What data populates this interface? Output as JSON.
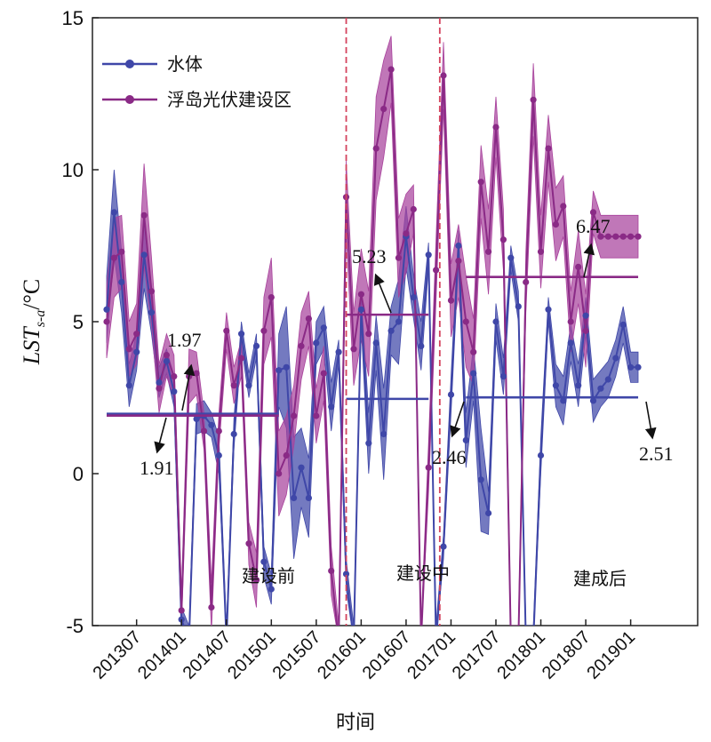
{
  "chart_data": {
    "type": "line",
    "title": "",
    "xlabel": "时间",
    "ylabel_main": "LST",
    "ylabel_sub": "s-a",
    "ylabel_unit": "/°C",
    "ylim": [
      -5,
      15
    ],
    "yticks": [
      "-5",
      "0",
      "5",
      "10",
      "15"
    ],
    "x_range": [
      0,
      78
    ],
    "xticks": [
      {
        "label": "201307",
        "x": 4
      },
      {
        "label": "201401",
        "x": 10
      },
      {
        "label": "201407",
        "x": 16
      },
      {
        "label": "201501",
        "x": 22
      },
      {
        "label": "201507",
        "x": 28
      },
      {
        "label": "201601",
        "x": 34
      },
      {
        "label": "201607",
        "x": 40
      },
      {
        "label": "201701",
        "x": 46
      },
      {
        "label": "201707",
        "x": 52
      },
      {
        "label": "201801",
        "x": 58
      },
      {
        "label": "201807",
        "x": 64
      },
      {
        "label": "201901",
        "x": 70
      }
    ],
    "legend_position": "top-left",
    "series": [
      {
        "name": "水体",
        "color": "#3f47a8",
        "band_color": "#3f47a8",
        "x": [
          0,
          1,
          2,
          3,
          4,
          5,
          6,
          7,
          8,
          9,
          10,
          11,
          12,
          13,
          14,
          15,
          16,
          17,
          18,
          19,
          20,
          21,
          22,
          23,
          24,
          25,
          26,
          27,
          28,
          29,
          30,
          31,
          32,
          33,
          34,
          35,
          36,
          37,
          38,
          39,
          40,
          41,
          42,
          43,
          44,
          45,
          46,
          47,
          48,
          49,
          50,
          51,
          52,
          53,
          54,
          55,
          56,
          57,
          58,
          59,
          60,
          61,
          62,
          63,
          64,
          65,
          66,
          67,
          68,
          69,
          70,
          71
        ],
        "values": [
          5.4,
          8.6,
          6.3,
          2.9,
          4.0,
          7.2,
          5.3,
          3.0,
          3.7,
          2.7,
          -4.8,
          -5.5,
          1.8,
          1.9,
          1.6,
          0.6,
          -5.5,
          1.3,
          4.6,
          2.9,
          4.2,
          -2.9,
          -3.8,
          3.4,
          3.5,
          -0.8,
          0.2,
          -0.8,
          4.3,
          4.8,
          2.2,
          4.0,
          -3.3,
          -5.5,
          5.4,
          1.0,
          4.3,
          1.3,
          4.7,
          5.0,
          7.8,
          5.8,
          4.2,
          7.2,
          -5.5,
          -2.4,
          2.6,
          7.5,
          1.1,
          3.3,
          -0.2,
          -1.3,
          5.0,
          3.2,
          7.1,
          5.5,
          -5.5,
          -5.5,
          0.6,
          5.4,
          2.9,
          2.4,
          4.3,
          2.9,
          5.2,
          2.4,
          2.8,
          3.1,
          3.8,
          4.9,
          3.5,
          3.5
        ],
        "upper": [
          6.5,
          10.0,
          7.3,
          3.6,
          4.6,
          8.3,
          6.0,
          3.5,
          4.1,
          3.2,
          -4.4,
          -5.0,
          2.3,
          2.4,
          2.0,
          1.2,
          -5.0,
          1.8,
          5.0,
          3.3,
          4.6,
          -2.4,
          -3.3,
          4.6,
          5.5,
          1.2,
          1.5,
          0.5,
          5.0,
          5.5,
          3.0,
          4.4,
          -2.8,
          -5.0,
          5.9,
          2.0,
          5.2,
          2.8,
          5.5,
          6.4,
          8.8,
          6.5,
          5.0,
          7.6,
          -5.0,
          -2.0,
          3.2,
          8.0,
          2.0,
          4.2,
          1.5,
          -0.6,
          5.6,
          3.8,
          7.5,
          6.0,
          -5.0,
          -5.0,
          1.2,
          5.8,
          3.6,
          3.2,
          4.9,
          3.6,
          5.8,
          3.1,
          3.4,
          3.7,
          4.4,
          5.5,
          4.0,
          4.0
        ],
        "lower": [
          4.3,
          7.2,
          5.3,
          2.2,
          3.4,
          6.1,
          4.6,
          2.5,
          3.3,
          2.2,
          -5.5,
          -5.5,
          1.3,
          1.4,
          1.2,
          0.0,
          -5.5,
          0.8,
          4.2,
          2.5,
          3.8,
          -3.4,
          -4.3,
          2.2,
          1.5,
          -2.8,
          -1.1,
          -2.1,
          3.6,
          4.1,
          1.4,
          3.6,
          -3.8,
          -5.5,
          4.9,
          0.0,
          3.4,
          -0.2,
          3.9,
          3.6,
          6.8,
          5.1,
          3.4,
          6.8,
          -5.5,
          -2.8,
          2.0,
          7.0,
          0.2,
          2.4,
          -1.9,
          -2.0,
          4.4,
          2.6,
          6.7,
          5.0,
          -5.5,
          -5.5,
          0.0,
          5.0,
          2.2,
          1.6,
          3.7,
          2.2,
          4.6,
          1.7,
          2.2,
          2.5,
          3.2,
          4.3,
          3.0,
          3.0
        ]
      },
      {
        "name": "浮岛光伏建设区",
        "color": "#8a2a86",
        "band_color": "#a8429c",
        "x": [
          0,
          1,
          2,
          3,
          4,
          5,
          6,
          7,
          8,
          9,
          10,
          11,
          12,
          13,
          14,
          15,
          16,
          17,
          18,
          19,
          20,
          21,
          22,
          23,
          24,
          25,
          26,
          27,
          28,
          29,
          30,
          31,
          32,
          33,
          34,
          35,
          36,
          37,
          38,
          39,
          40,
          41,
          42,
          43,
          44,
          45,
          46,
          47,
          48,
          49,
          50,
          51,
          52,
          53,
          54,
          55,
          56,
          57,
          58,
          59,
          60,
          61,
          62,
          63,
          64,
          65,
          66,
          67,
          68,
          69,
          70,
          71
        ],
        "values": [
          5.0,
          7.1,
          7.3,
          4.1,
          4.6,
          8.5,
          6.0,
          2.8,
          3.9,
          3.2,
          -4.5,
          3.2,
          3.3,
          1.4,
          -4.4,
          1.4,
          4.7,
          2.9,
          3.8,
          -2.3,
          -3.5,
          4.7,
          5.8,
          0.0,
          0.6,
          1.9,
          4.2,
          5.1,
          1.9,
          3.3,
          -3.2,
          -5.5,
          9.1,
          4.1,
          5.9,
          4.6,
          10.7,
          12.0,
          13.3,
          7.1,
          7.9,
          8.7,
          -5.5,
          0.2,
          6.7,
          13.1,
          5.7,
          7.0,
          5.0,
          4.0,
          9.6,
          7.3,
          11.4,
          7.7,
          -5.5,
          -5.5,
          6.3,
          12.3,
          7.3,
          10.7,
          8.2,
          8.8,
          5.0,
          6.8,
          4.7,
          8.6,
          7.8,
          7.8,
          7.8,
          7.8,
          7.8,
          7.8
        ],
        "upper": [
          6.2,
          8.4,
          8.5,
          5.0,
          5.6,
          10.2,
          7.1,
          3.6,
          4.6,
          3.9,
          -3.9,
          4.1,
          4.0,
          2.0,
          -3.6,
          2.0,
          5.3,
          3.5,
          4.4,
          -1.6,
          -2.6,
          5.8,
          7.1,
          1.4,
          1.9,
          2.9,
          5.3,
          6.0,
          2.8,
          4.2,
          -2.4,
          -5.0,
          10.3,
          5.3,
          7.4,
          6.0,
          12.4,
          13.6,
          14.4,
          8.4,
          9.2,
          9.5,
          -5.0,
          1.0,
          7.7,
          14.2,
          6.9,
          8.2,
          6.5,
          5.1,
          10.8,
          8.7,
          12.4,
          8.7,
          -5.0,
          -5.0,
          7.3,
          13.5,
          8.5,
          11.8,
          9.4,
          9.8,
          6.0,
          8.0,
          5.9,
          9.3,
          8.5,
          8.5,
          8.5,
          8.5,
          8.5,
          8.5
        ],
        "lower": [
          3.8,
          5.8,
          6.1,
          3.2,
          3.6,
          6.8,
          4.9,
          2.0,
          3.2,
          2.5,
          -5.1,
          2.3,
          2.6,
          0.8,
          -5.2,
          0.8,
          4.1,
          2.3,
          3.2,
          -3.0,
          -4.4,
          3.6,
          4.5,
          -1.4,
          -0.7,
          0.9,
          3.1,
          4.2,
          1.0,
          2.4,
          -4.0,
          -5.5,
          7.9,
          2.9,
          4.4,
          3.2,
          9.0,
          10.4,
          12.2,
          5.8,
          6.6,
          7.9,
          -5.5,
          -0.6,
          5.7,
          12.0,
          4.5,
          5.8,
          3.5,
          2.9,
          8.4,
          5.9,
          10.4,
          6.7,
          -5.5,
          -5.5,
          5.3,
          11.1,
          6.1,
          9.6,
          7.0,
          7.8,
          4.0,
          5.6,
          3.5,
          7.9,
          7.1,
          7.1,
          7.1,
          7.1,
          7.1,
          7.1
        ]
      }
    ],
    "mean_lines": [
      {
        "series": "水体",
        "x0": 0,
        "x1": 23,
        "y": 1.97
      },
      {
        "series": "浮岛光伏建设区",
        "x0": 0,
        "x1": 23,
        "y": 1.91
      },
      {
        "series": "浮岛光伏建设区",
        "x0": 32,
        "x1": 43,
        "y": 5.23
      },
      {
        "series": "水体",
        "x0": 32,
        "x1": 43,
        "y": 2.46
      },
      {
        "series": "浮岛光伏建设区",
        "x0": 48,
        "x1": 71,
        "y": 6.47
      },
      {
        "series": "水体",
        "x0": 48,
        "x1": 71,
        "y": 2.51
      }
    ],
    "period_dividers": [
      32,
      44.5
    ],
    "annotations": [
      {
        "text": "1.97"
      },
      {
        "text": "1.91"
      },
      {
        "text": "5.23"
      },
      {
        "text": "2.46"
      },
      {
        "text": "6.47"
      },
      {
        "text": "2.51"
      }
    ],
    "phase_labels": [
      "建设前",
      "建设中",
      "建成后"
    ]
  }
}
